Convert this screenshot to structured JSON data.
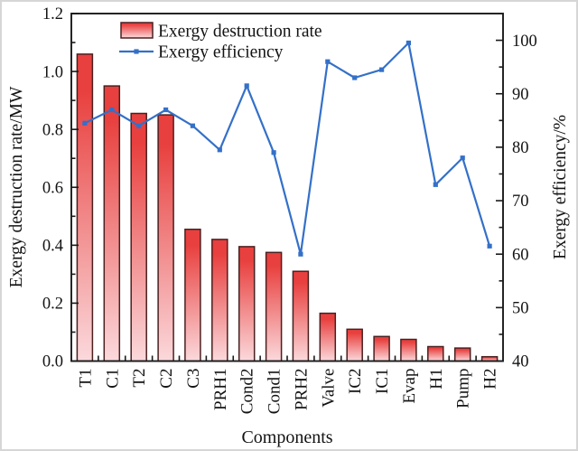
{
  "figure": {
    "background": "#ffffff"
  },
  "chart_data": {
    "type": "bar+line",
    "categories": [
      "T1",
      "C1",
      "T2",
      "C2",
      "C3",
      "PRH1",
      "Cond2",
      "Cond1",
      "PRH2",
      "Valve",
      "IC2",
      "IC1",
      "Evap",
      "H1",
      "Pump",
      "H2"
    ],
    "series": [
      {
        "name": "Exergy destruction rate",
        "type": "bar",
        "axis": "left",
        "values": [
          1.06,
          0.95,
          0.855,
          0.85,
          0.455,
          0.42,
          0.395,
          0.375,
          0.31,
          0.165,
          0.11,
          0.085,
          0.075,
          0.05,
          0.045,
          0.015
        ]
      },
      {
        "name": "Exergy efficiency",
        "type": "line",
        "axis": "right",
        "marker": "square",
        "values": [
          84.5,
          87,
          84,
          87,
          84,
          79.5,
          91.5,
          79,
          60,
          96,
          93,
          94.5,
          99.5,
          73,
          78,
          61.5
        ]
      }
    ],
    "xlabel": "Components",
    "left_axis": {
      "label": "Exergy destruction rate/MW",
      "range": [
        0,
        1.2
      ],
      "ticks": [
        0,
        0.2,
        0.4,
        0.6,
        0.8,
        1.0,
        1.2
      ],
      "minor_step": 0.1,
      "decimals": 1
    },
    "right_axis": {
      "label": "Exergy efficiency/%",
      "range": [
        40,
        105
      ],
      "ticks": [
        40,
        50,
        60,
        70,
        80,
        90,
        100
      ],
      "minor_step": 5,
      "decimals": 0
    },
    "legend": {
      "position": "top-inside",
      "entries": [
        "Exergy destruction rate",
        "Exergy efficiency"
      ]
    },
    "colors": {
      "bar_top": "#e8403e",
      "bar_bottom": "#fbd9dc",
      "bar_border": "#4a2020",
      "line": "#3470c8",
      "frame": "#1a1a1a"
    }
  }
}
